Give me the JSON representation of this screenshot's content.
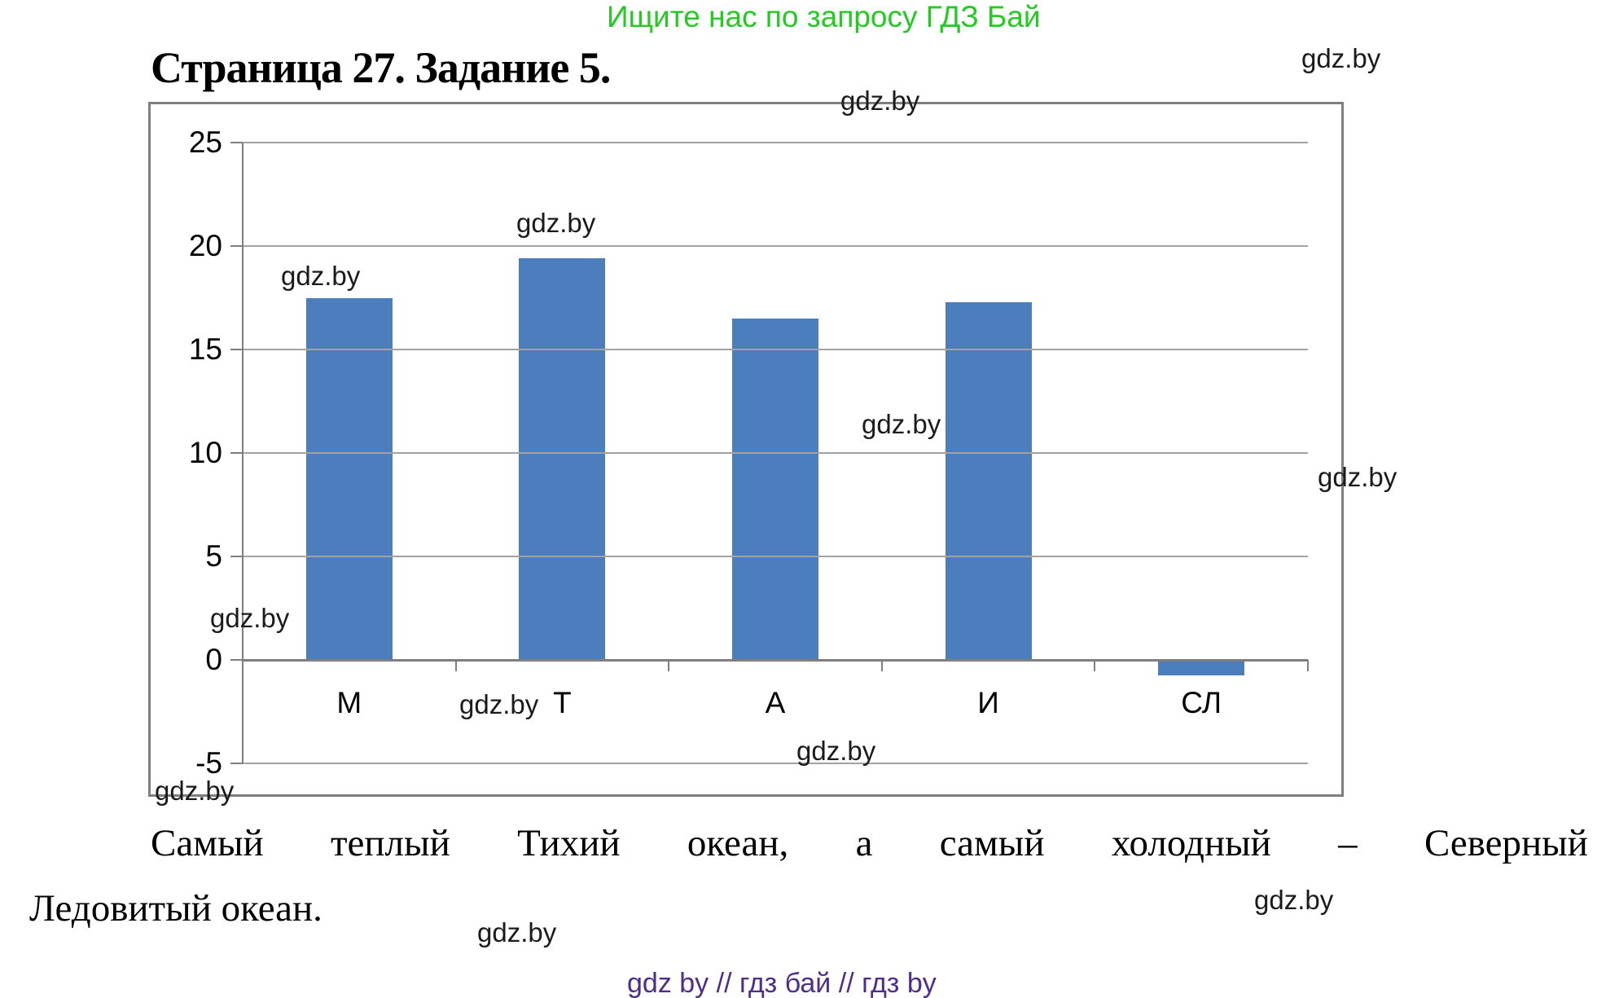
{
  "page": {
    "promo_banner": "Ищите нас по запросу ГДЗ Бай",
    "title": "Страница 27. Задание 5.",
    "watermark": "gdz.by",
    "answer": {
      "line1_words": [
        "Самый",
        "теплый",
        "Тихий",
        "океан,",
        "а",
        "самый",
        "холодный",
        "–",
        "Северный"
      ],
      "line2": "Ледовитый океан."
    },
    "footer": "gdz by  //  гдз бай  //  гдз by"
  },
  "colors": {
    "promo_green": "#23cb23",
    "footer_purple": "#4f2d8e",
    "bar_blue": "#4c7ebd",
    "grid_gray": "#a3a3a3",
    "axis_gray": "#7f7f7f"
  },
  "chart_data": {
    "type": "bar",
    "title": "",
    "xlabel": "",
    "ylabel": "",
    "categories": [
      "М",
      "Т",
      "А",
      "И",
      "СЛ"
    ],
    "values": [
      17.5,
      19.4,
      16.5,
      17.3,
      -0.75
    ],
    "ylim": [
      -5,
      25
    ],
    "yticks": [
      25,
      20,
      15,
      10,
      5,
      0,
      -5
    ],
    "grid": "horizontal gridlines on",
    "legend": "none",
    "bar_color": "#4c7ebd"
  }
}
